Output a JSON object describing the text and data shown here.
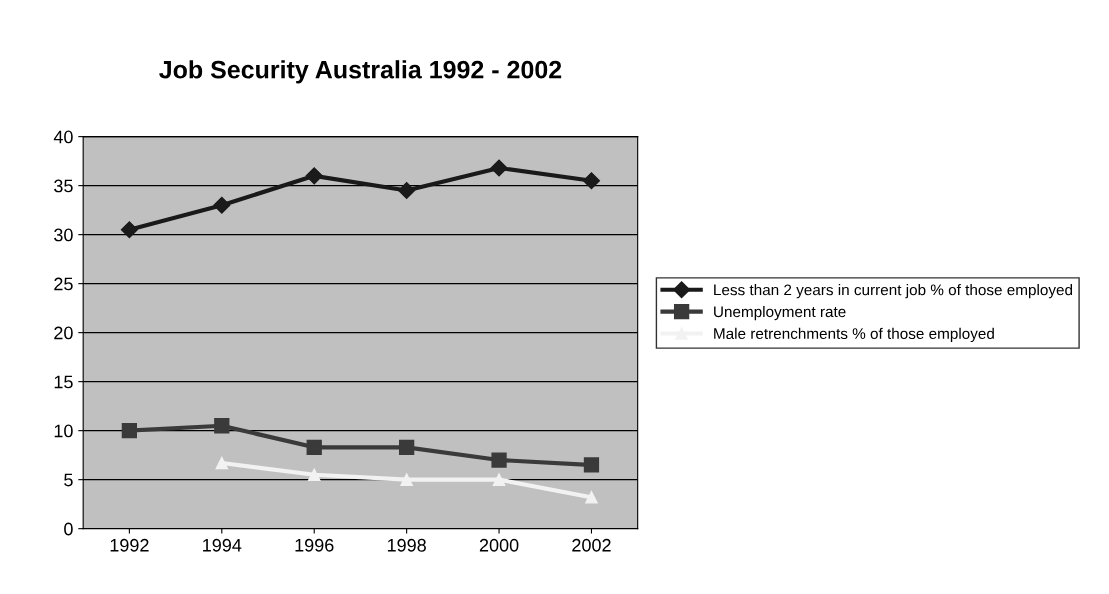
{
  "chart_data": {
    "type": "line",
    "title": "Job Security Australia 1992 - 2002",
    "categories": [
      "1992",
      "1994",
      "1996",
      "1998",
      "2000",
      "2002"
    ],
    "series": [
      {
        "name": "Less than 2 years in current job % of those employed",
        "color": "#1a1a1a",
        "marker": "diamond",
        "values": [
          30.5,
          33,
          36,
          34.5,
          36.8,
          35.5
        ]
      },
      {
        "name": "Unemployment rate",
        "color": "#3a3a3a",
        "marker": "square",
        "values": [
          10,
          10.5,
          8.3,
          8.3,
          7,
          6.5
        ]
      },
      {
        "name": "Male retrenchments % of those employed",
        "color": "#f2f2f2",
        "marker": "triangle",
        "values": [
          null,
          6.7,
          5.5,
          5,
          5,
          3.2
        ]
      }
    ],
    "ylim": [
      0,
      40
    ],
    "yticks": [
      0,
      5,
      10,
      15,
      20,
      25,
      30,
      35,
      40
    ],
    "grid": "y",
    "legend": "right"
  }
}
